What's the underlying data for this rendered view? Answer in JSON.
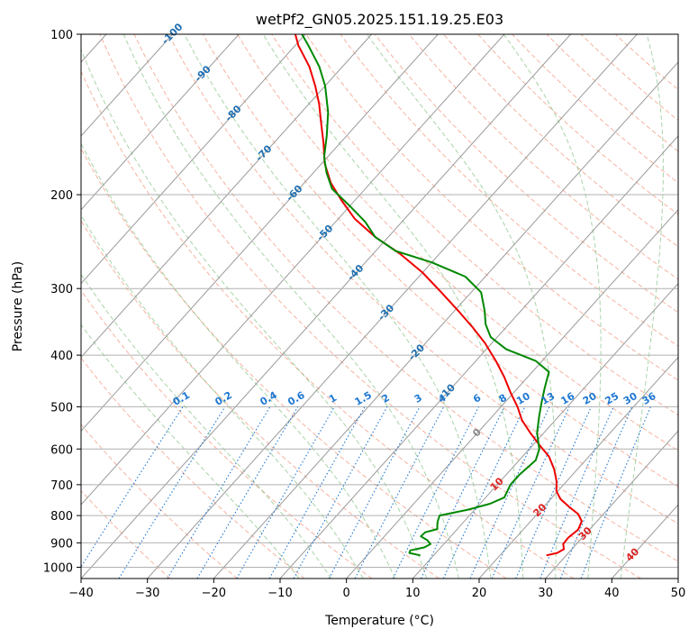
{
  "chart_data": {
    "type": "line",
    "title": "wetPf2_GN05.2025.151.19.25.E03",
    "xlabel": "Temperature (°C)",
    "ylabel": "Pressure (hPa)",
    "xlim": [
      -40,
      50
    ],
    "ylim": [
      1050,
      100
    ],
    "y_scale": "log",
    "grid": true,
    "x_ticks": [
      -40,
      -30,
      -20,
      -10,
      0,
      10,
      20,
      30,
      40,
      50
    ],
    "y_ticks": [
      100,
      200,
      300,
      400,
      500,
      600,
      700,
      800,
      900,
      1000
    ],
    "series": [
      {
        "role": "temperature",
        "color": "#ee0000",
        "points": [
          [
            950,
            27.0
          ],
          [
            940,
            28.3
          ],
          [
            925,
            28.8
          ],
          [
            905,
            28.0
          ],
          [
            880,
            27.9
          ],
          [
            850,
            28.3
          ],
          [
            820,
            27.7
          ],
          [
            795,
            26.2
          ],
          [
            770,
            23.8
          ],
          [
            745,
            21.5
          ],
          [
            720,
            19.8
          ],
          [
            690,
            18.5
          ],
          [
            655,
            16.5
          ],
          [
            620,
            14.0
          ],
          [
            590,
            11.0
          ],
          [
            560,
            8.0
          ],
          [
            530,
            5.0
          ],
          [
            500,
            2.5
          ],
          [
            470,
            -0.5
          ],
          [
            440,
            -3.5
          ],
          [
            410,
            -7.0
          ],
          [
            380,
            -11.0
          ],
          [
            355,
            -15.0
          ],
          [
            330,
            -19.5
          ],
          [
            305,
            -24.5
          ],
          [
            280,
            -30.0
          ],
          [
            258,
            -36.0
          ],
          [
            240,
            -42.0
          ],
          [
            222,
            -47.5
          ],
          [
            205,
            -52.0
          ],
          [
            190,
            -56.0
          ],
          [
            175,
            -59.5
          ],
          [
            160,
            -62.5
          ],
          [
            145,
            -66.0
          ],
          [
            135,
            -68.5
          ],
          [
            125,
            -71.5
          ],
          [
            115,
            -75.0
          ],
          [
            105,
            -79.5
          ],
          [
            100,
            -81.5
          ]
        ]
      },
      {
        "role": "dewpoint",
        "color": "#008800",
        "points": [
          [
            950,
            8.0
          ],
          [
            940,
            6.0
          ],
          [
            930,
            5.8
          ],
          [
            918,
            7.5
          ],
          [
            905,
            8.0
          ],
          [
            890,
            7.0
          ],
          [
            875,
            5.5
          ],
          [
            860,
            5.6
          ],
          [
            848,
            7.0
          ],
          [
            835,
            6.5
          ],
          [
            820,
            6.0
          ],
          [
            800,
            5.5
          ],
          [
            780,
            9.0
          ],
          [
            760,
            11.5
          ],
          [
            740,
            12.8
          ],
          [
            700,
            12.0
          ],
          [
            670,
            12.0
          ],
          [
            630,
            12.5
          ],
          [
            600,
            11.5
          ],
          [
            560,
            9.0
          ],
          [
            520,
            7.0
          ],
          [
            490,
            5.5
          ],
          [
            460,
            4.0
          ],
          [
            430,
            2.5
          ],
          [
            410,
            -1.0
          ],
          [
            390,
            -7.0
          ],
          [
            370,
            -11.0
          ],
          [
            350,
            -13.5
          ],
          [
            330,
            -15.5
          ],
          [
            305,
            -18.5
          ],
          [
            285,
            -23.0
          ],
          [
            268,
            -30.0
          ],
          [
            255,
            -37.0
          ],
          [
            240,
            -42.0
          ],
          [
            225,
            -45.5
          ],
          [
            210,
            -50.0
          ],
          [
            195,
            -55.0
          ],
          [
            182,
            -58.0
          ],
          [
            170,
            -60.5
          ],
          [
            155,
            -63.0
          ],
          [
            140,
            -66.0
          ],
          [
            125,
            -70.0
          ],
          [
            115,
            -73.5
          ],
          [
            105,
            -78.0
          ],
          [
            100,
            -80.5
          ]
        ]
      }
    ],
    "dry_adiabats_C": [
      -30,
      -20,
      -10,
      0,
      10,
      20,
      30,
      40,
      50,
      60,
      70,
      80,
      90,
      100,
      110,
      120,
      130,
      140,
      150,
      160,
      170,
      180,
      190
    ],
    "moist_adiabats_C": [
      -10,
      -5,
      0,
      5,
      10,
      15,
      20,
      25,
      30,
      35,
      40
    ],
    "mixing_ratio_labels": [
      "0.1",
      "0.2",
      "0.4",
      "0.6",
      "1",
      "1.5",
      "2",
      "3",
      "4",
      "6",
      "8",
      "10",
      "13",
      "16",
      "20",
      "25",
      "30",
      "36"
    ],
    "mixing_ratios": [
      0.1,
      0.2,
      0.4,
      0.6,
      1,
      1.5,
      2,
      3,
      4,
      6,
      8,
      10,
      13,
      16,
      20,
      25,
      30,
      36
    ],
    "isotherm_labels_blue": [
      {
        "text": "-100",
        "t": -100
      },
      {
        "text": "-90",
        "t": -90
      },
      {
        "text": "-80",
        "t": -80
      },
      {
        "text": "-70",
        "t": -70
      },
      {
        "text": "-60",
        "t": -60
      },
      {
        "text": "-50",
        "t": -50
      },
      {
        "text": "-40",
        "t": -40
      },
      {
        "text": "-30",
        "t": -30
      },
      {
        "text": "-20",
        "t": -20
      },
      {
        "text": "-10",
        "t": -10
      }
    ],
    "isotherm_label_zero": {
      "text": "0",
      "t": 0
    },
    "isotherm_labels_red": [
      {
        "text": "10",
        "t": 10
      },
      {
        "text": "20",
        "t": 20
      },
      {
        "text": "30",
        "t": 30
      },
      {
        "text": "40",
        "t": 40
      }
    ],
    "colors": {
      "isotherm": "#9a9a9a",
      "isobar": "#b0b0b0",
      "dry_adiabat": "#f08060",
      "moist_adiabat": "#60b060",
      "mixing_ratio": "#1e78d2",
      "label_blue": "#1f6fb2",
      "label_red": "#dd2222",
      "label_zero": "#888888"
    }
  }
}
